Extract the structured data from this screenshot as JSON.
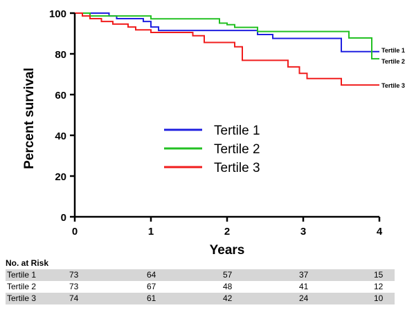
{
  "chart_data": {
    "type": "line",
    "step": true,
    "xlabel": "Years",
    "ylabel": "Percent survival",
    "xlim": [
      0,
      4
    ],
    "ylim": [
      0,
      100
    ],
    "xticks": [
      "0",
      "1",
      "2",
      "3",
      "4"
    ],
    "yticks": [
      "0",
      "20",
      "40",
      "60",
      "80",
      "100"
    ],
    "grid": false,
    "legend_position": "center",
    "series": [
      {
        "name": "Tertile 1",
        "end_label": "Tertile 1",
        "color": "#1f1fe0",
        "x": [
          0,
          0.45,
          0.55,
          0.9,
          1.0,
          1.1,
          2.3,
          2.4,
          2.6,
          3.5,
          4.0
        ],
        "y": [
          100,
          98.6,
          97.3,
          95.9,
          93.2,
          91.5,
          91.5,
          89.5,
          87.6,
          81.1,
          81.1
        ]
      },
      {
        "name": "Tertile 2",
        "end_label": "Tertile 2",
        "color": "#22c022",
        "x": [
          0,
          0.2,
          0.4,
          0.9,
          1.0,
          1.8,
          1.9,
          2.0,
          2.1,
          2.4,
          3.5,
          3.6,
          3.8,
          3.9,
          4.0
        ],
        "y": [
          100,
          98.6,
          98.6,
          98.6,
          97.2,
          97.2,
          95.1,
          94.3,
          93.0,
          91.0,
          91.0,
          87.8,
          87.8,
          77.6,
          77.6
        ]
      },
      {
        "name": "Tertile 3",
        "end_label": "Tertile 3",
        "color": "#f01c1c",
        "x": [
          0,
          0.1,
          0.2,
          0.35,
          0.5,
          0.7,
          0.8,
          1.0,
          1.4,
          1.55,
          1.7,
          2.0,
          2.1,
          2.2,
          2.6,
          2.8,
          2.95,
          3.05,
          3.15,
          3.5,
          4.0
        ],
        "y": [
          100,
          98.6,
          97.3,
          95.9,
          94.6,
          93.2,
          91.8,
          90.5,
          90.5,
          88.9,
          85.6,
          85.6,
          83.5,
          76.8,
          76.8,
          73.6,
          70.4,
          67.9,
          67.9,
          64.7,
          64.7
        ]
      }
    ]
  },
  "risk_table": {
    "title": "No. at Risk",
    "rows": [
      {
        "label": "Tertile 1",
        "values": [
          "73",
          "64",
          "57",
          "37",
          "15"
        ]
      },
      {
        "label": "Tertile 2",
        "values": [
          "73",
          "67",
          "48",
          "41",
          "12"
        ]
      },
      {
        "label": "Tertile 3",
        "values": [
          "74",
          "61",
          "42",
          "24",
          "10"
        ]
      }
    ]
  }
}
